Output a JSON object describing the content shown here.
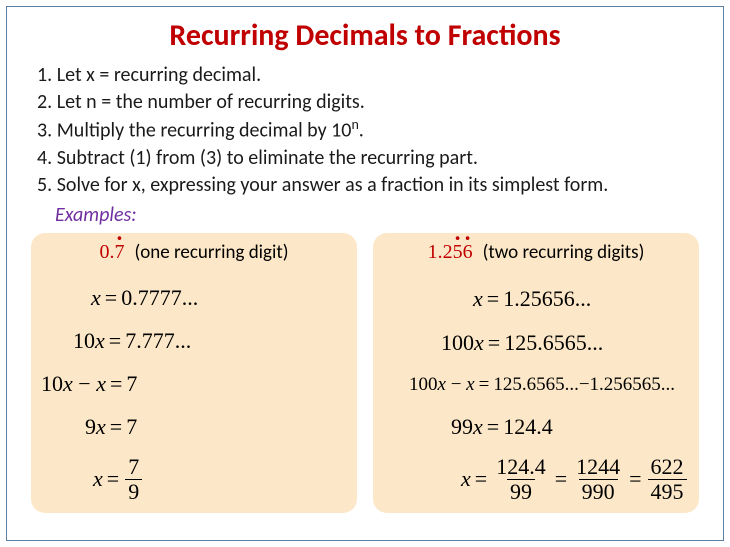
{
  "title": "Recurring Decimals to Fractions",
  "colors": {
    "title": "#c00000",
    "frame_border": "#5b7fa6",
    "examples_label": "#7030a0",
    "example_bg": "#fce8c8",
    "highlight": "#c00000"
  },
  "steps": [
    "1. Let x = recurring decimal.",
    "2. Let n = the number of recurring digits.",
    "3. Multiply the recurring decimal by 10ⁿ.",
    "4. Subtract (1) from (3) to eliminate the recurring part.",
    "5. Solve for x, expressing your answer as a fraction in its simplest form."
  ],
  "examples_label": "Examples:",
  "example_a": {
    "decimal_prefix": "0.",
    "decimal_recurring": "7",
    "note": "(one recurring digit)",
    "lines": {
      "l1_lhs": "x",
      "l1_rhs": "0.7777...",
      "l2_lhs": "10x",
      "l2_rhs": "7.777...",
      "l3_lhs": "10x − x",
      "l3_rhs": "7",
      "l4_lhs": "9x",
      "l4_rhs": "7",
      "l5_lhs": "x",
      "l5_num": "7",
      "l5_den": "9"
    }
  },
  "example_b": {
    "decimal_prefix": "1.2",
    "decimal_r1": "5",
    "decimal_r2": "6",
    "note": "(two recurring digits)",
    "lines": {
      "l1_lhs": "x",
      "l1_rhs": "1.25656...",
      "l2_lhs": "100x",
      "l2_rhs": "125.6565...",
      "l3_lhs": "100x − x",
      "l3_rhs": "125.6565...−1.256565...",
      "l4_lhs": "99x",
      "l4_rhs": "124.4",
      "l5_lhs": "x",
      "f1_num": "124.4",
      "f1_den": "99",
      "f2_num": "1244",
      "f2_den": "990",
      "f3_num": "622",
      "f3_den": "495"
    }
  }
}
